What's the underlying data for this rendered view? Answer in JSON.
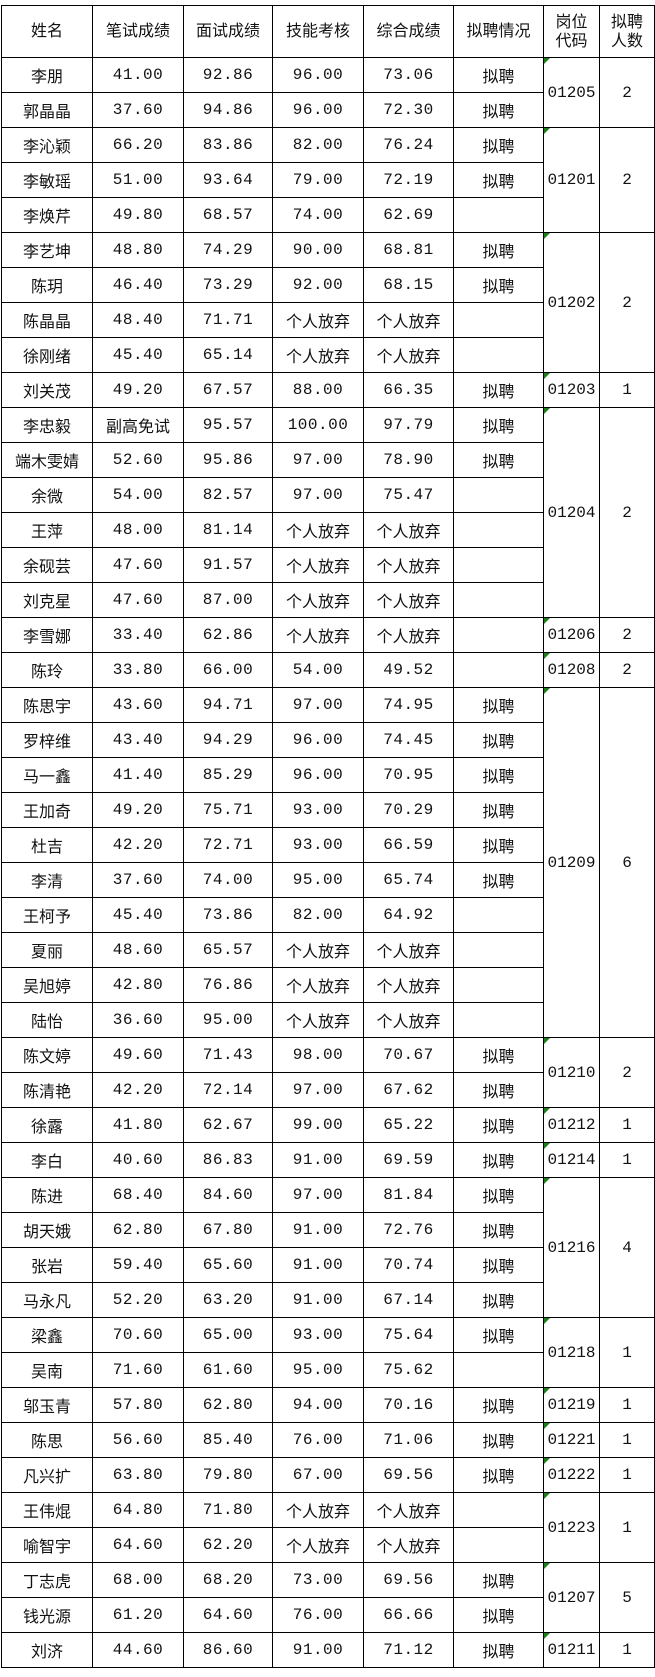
{
  "headers": [
    "姓名",
    "笔试成绩",
    "面试成绩",
    "技能考核",
    "综合成绩",
    "拟聘情况",
    "岗位代码",
    "拟聘人数"
  ],
  "groups": [
    {
      "code": "01205",
      "count": "2",
      "rows": [
        [
          "李朋",
          "41.00",
          "92.86",
          "96.00",
          "73.06",
          "拟聘"
        ],
        [
          "郭晶晶",
          "37.60",
          "94.86",
          "96.00",
          "72.30",
          "拟聘"
        ]
      ]
    },
    {
      "code": "01201",
      "count": "2",
      "rows": [
        [
          "李沁颖",
          "66.20",
          "83.86",
          "82.00",
          "76.24",
          "拟聘"
        ],
        [
          "李敏瑶",
          "51.00",
          "93.64",
          "79.00",
          "72.19",
          "拟聘"
        ],
        [
          "李焕芹",
          "49.80",
          "68.57",
          "74.00",
          "62.69",
          ""
        ]
      ]
    },
    {
      "code": "01202",
      "count": "2",
      "rows": [
        [
          "李艺坤",
          "48.80",
          "74.29",
          "90.00",
          "68.81",
          "拟聘"
        ],
        [
          "陈玥",
          "46.40",
          "73.29",
          "92.00",
          "68.15",
          "拟聘"
        ],
        [
          "陈晶晶",
          "48.40",
          "71.71",
          "个人放弃",
          "个人放弃",
          ""
        ],
        [
          "徐刚绪",
          "45.40",
          "65.14",
          "个人放弃",
          "个人放弃",
          ""
        ]
      ]
    },
    {
      "code": "01203",
      "count": "1",
      "rows": [
        [
          "刘关茂",
          "49.20",
          "67.57",
          "88.00",
          "66.35",
          "拟聘"
        ]
      ]
    },
    {
      "code": "01204",
      "count": "2",
      "rows": [
        [
          "李忠毅",
          "副高免试",
          "95.57",
          "100.00",
          "97.79",
          "拟聘"
        ],
        [
          "端木雯婧",
          "52.60",
          "95.86",
          "97.00",
          "78.90",
          "拟聘"
        ],
        [
          "余微",
          "54.00",
          "82.57",
          "97.00",
          "75.47",
          ""
        ],
        [
          "王萍",
          "48.00",
          "81.14",
          "个人放弃",
          "个人放弃",
          ""
        ],
        [
          "余砚芸",
          "47.60",
          "91.57",
          "个人放弃",
          "个人放弃",
          ""
        ],
        [
          "刘克星",
          "47.60",
          "87.00",
          "个人放弃",
          "个人放弃",
          ""
        ]
      ]
    },
    {
      "code": "01206",
      "count": "2",
      "rows": [
        [
          "李雪娜",
          "33.40",
          "62.86",
          "个人放弃",
          "个人放弃",
          ""
        ]
      ]
    },
    {
      "code": "01208",
      "count": "2",
      "rows": [
        [
          "陈玲",
          "33.80",
          "66.00",
          "54.00",
          "49.52",
          ""
        ]
      ]
    },
    {
      "code": "01209",
      "count": "6",
      "rows": [
        [
          "陈思宇",
          "43.60",
          "94.71",
          "97.00",
          "74.95",
          "拟聘"
        ],
        [
          "罗梓维",
          "43.40",
          "94.29",
          "96.00",
          "74.45",
          "拟聘"
        ],
        [
          "马一鑫",
          "41.40",
          "85.29",
          "96.00",
          "70.95",
          "拟聘"
        ],
        [
          "王加奇",
          "49.20",
          "75.71",
          "93.00",
          "70.29",
          "拟聘"
        ],
        [
          "杜吉",
          "42.20",
          "72.71",
          "93.00",
          "66.59",
          "拟聘"
        ],
        [
          "李清",
          "37.60",
          "74.00",
          "95.00",
          "65.74",
          "拟聘"
        ],
        [
          "王柯予",
          "45.40",
          "73.86",
          "82.00",
          "64.92",
          ""
        ],
        [
          "夏丽",
          "48.60",
          "65.57",
          "个人放弃",
          "个人放弃",
          ""
        ],
        [
          "吴旭婷",
          "42.80",
          "76.86",
          "个人放弃",
          "个人放弃",
          ""
        ],
        [
          "陆怡",
          "36.60",
          "95.00",
          "个人放弃",
          "个人放弃",
          ""
        ]
      ]
    },
    {
      "code": "01210",
      "count": "2",
      "rows": [
        [
          "陈文婷",
          "49.60",
          "71.43",
          "98.00",
          "70.67",
          "拟聘"
        ],
        [
          "陈清艳",
          "42.20",
          "72.14",
          "97.00",
          "67.62",
          "拟聘"
        ]
      ]
    },
    {
      "code": "01212",
      "count": "1",
      "rows": [
        [
          "徐露",
          "41.80",
          "62.67",
          "99.00",
          "65.22",
          "拟聘"
        ]
      ]
    },
    {
      "code": "01214",
      "count": "1",
      "rows": [
        [
          "李白",
          "40.60",
          "86.83",
          "91.00",
          "69.59",
          "拟聘"
        ]
      ]
    },
    {
      "code": "01216",
      "count": "4",
      "rows": [
        [
          "陈进",
          "68.40",
          "84.60",
          "97.00",
          "81.84",
          "拟聘"
        ],
        [
          "胡天娥",
          "62.80",
          "67.80",
          "91.00",
          "72.76",
          "拟聘"
        ],
        [
          "张岩",
          "59.40",
          "65.60",
          "91.00",
          "70.74",
          "拟聘"
        ],
        [
          "马永凡",
          "52.20",
          "63.20",
          "91.00",
          "67.14",
          "拟聘"
        ]
      ]
    },
    {
      "code": "01218",
      "count": "1",
      "rows": [
        [
          "梁鑫",
          "70.60",
          "65.00",
          "93.00",
          "75.64",
          "拟聘"
        ],
        [
          "吴南",
          "71.60",
          "61.60",
          "95.00",
          "75.62",
          ""
        ]
      ]
    },
    {
      "code": "01219",
      "count": "1",
      "rows": [
        [
          "邬玉青",
          "57.80",
          "62.80",
          "94.00",
          "70.16",
          "拟聘"
        ]
      ]
    },
    {
      "code": "01221",
      "count": "1",
      "rows": [
        [
          "陈思",
          "56.60",
          "85.40",
          "76.00",
          "71.06",
          "拟聘"
        ]
      ]
    },
    {
      "code": "01222",
      "count": "1",
      "rows": [
        [
          "凡兴扩",
          "63.80",
          "79.80",
          "67.00",
          "69.56",
          "拟聘"
        ]
      ]
    },
    {
      "code": "01223",
      "count": "1",
      "rows": [
        [
          "王伟焜",
          "64.80",
          "71.80",
          "个人放弃",
          "个人放弃",
          ""
        ],
        [
          "喻智宇",
          "64.60",
          "62.20",
          "个人放弃",
          "个人放弃",
          ""
        ]
      ]
    },
    {
      "code": "01207",
      "count": "5",
      "rows": [
        [
          "丁志虎",
          "68.00",
          "68.20",
          "73.00",
          "69.56",
          "拟聘"
        ],
        [
          "钱光源",
          "61.20",
          "64.60",
          "76.00",
          "66.66",
          "拟聘"
        ]
      ]
    },
    {
      "code": "01211",
      "count": "1",
      "rows": [
        [
          "刘济",
          "44.60",
          "86.60",
          "91.00",
          "71.12",
          "拟聘"
        ]
      ]
    }
  ],
  "colors": {
    "border": "#000000",
    "comment_marker": "#1a7f1a"
  }
}
